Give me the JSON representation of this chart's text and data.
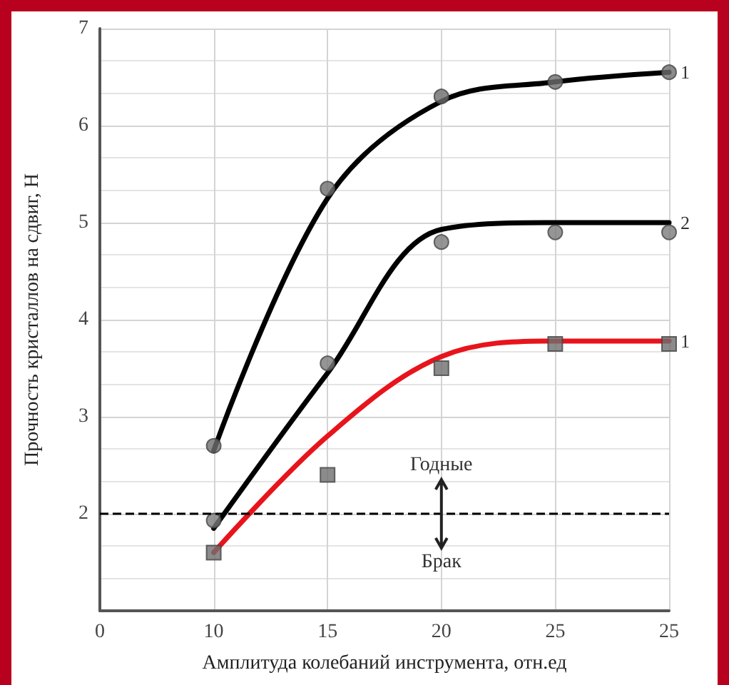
{
  "chart_data": {
    "type": "line",
    "xlabel": "Амплитуда колебаний инструмента, отн.ед",
    "ylabel": "Прочность кристаллов на сдвиг, Н",
    "categories": [
      "0",
      "10",
      "15",
      "20",
      "25",
      "25"
    ],
    "ylim": [
      1,
      7
    ],
    "yticks": [
      {
        "value": 1,
        "label": null
      },
      2,
      3,
      4,
      5,
      6,
      7
    ],
    "grid": true,
    "legend": false,
    "series": [
      {
        "name": "1",
        "color": "#000000",
        "marker": "none",
        "values": [
          null,
          2.65,
          5.25,
          6.25,
          6.45,
          6.55
        ]
      },
      {
        "name": "2",
        "color": "#000000",
        "marker": "none",
        "values": [
          null,
          1.85,
          3.45,
          4.93,
          5.0,
          5.0
        ]
      },
      {
        "name": "1",
        "color": "#e8141c",
        "marker": "none",
        "values": [
          null,
          1.6,
          2.8,
          3.62,
          3.78,
          3.78
        ]
      },
      {
        "type": "scatter",
        "color": "#6e6e6e",
        "marker": "circle",
        "values": [
          null,
          2.7,
          5.35,
          6.3,
          6.45,
          6.55
        ]
      },
      {
        "type": "scatter",
        "color": "#7a7a7a",
        "marker": "circle",
        "values": [
          null,
          1.93,
          3.55,
          4.8,
          4.9,
          4.9
        ]
      },
      {
        "type": "scatter",
        "color": "#6e6e6e",
        "marker": "square",
        "values": [
          null,
          1.6,
          2.4,
          3.5,
          3.75,
          3.75
        ]
      }
    ],
    "ref_lines": [
      {
        "axis": "y",
        "value": 2,
        "color": "#000000",
        "line_style": "dashed"
      }
    ],
    "annotations": [
      "Годные",
      "Брак"
    ]
  }
}
